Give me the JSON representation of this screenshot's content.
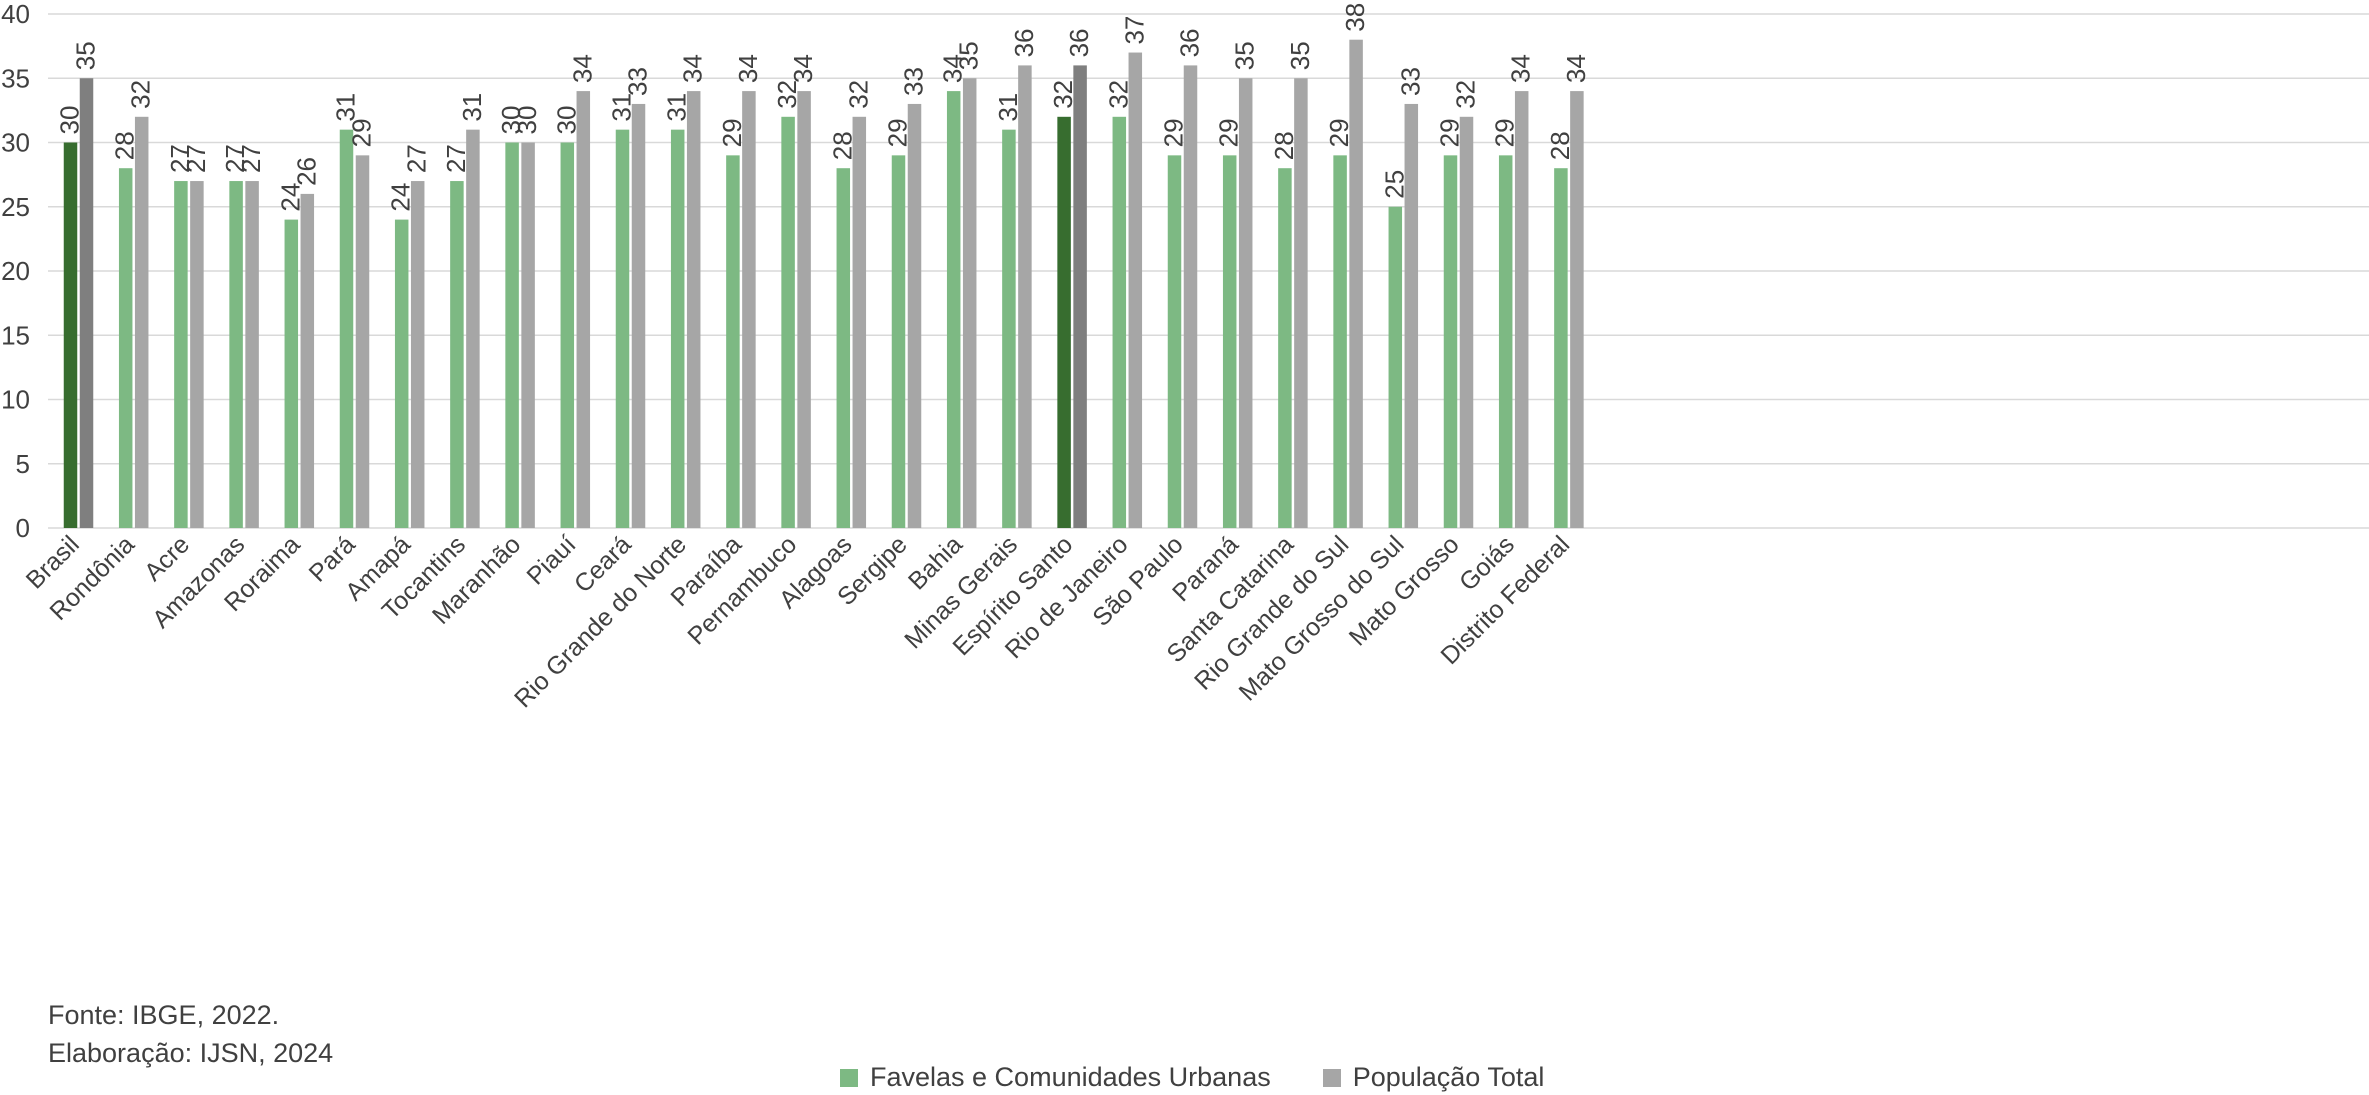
{
  "chart_data": {
    "type": "bar",
    "categories": [
      "Brasil",
      "Rondônia",
      "Acre",
      "Amazonas",
      "Roraima",
      "Pará",
      "Amapá",
      "Tocantins",
      "Maranhão",
      "Piauí",
      "Ceará",
      "Rio Grande do Norte",
      "Paraíba",
      "Pernambuco",
      "Alagoas",
      "Sergipe",
      "Bahia",
      "Minas Gerais",
      "Espírito Santo",
      "Rio de Janeiro",
      "São Paulo",
      "Paraná",
      "Santa Catarina",
      "Rio Grande do Sul",
      "Mato Grosso do Sul",
      "Mato Grosso",
      "Goiás",
      "Distrito Federal"
    ],
    "series": [
      {
        "name": "Favelas e Comunidades Urbanas",
        "values": [
          30,
          28,
          27,
          27,
          24,
          31,
          24,
          27,
          30,
          30,
          31,
          31,
          29,
          32,
          28,
          29,
          34,
          31,
          32,
          32,
          29,
          29,
          28,
          29,
          25,
          29,
          29,
          28
        ]
      },
      {
        "name": "População Total",
        "values": [
          35,
          32,
          27,
          27,
          26,
          29,
          27,
          31,
          30,
          34,
          33,
          34,
          34,
          34,
          32,
          33,
          35,
          36,
          36,
          37,
          36,
          35,
          35,
          38,
          33,
          32,
          34,
          34
        ]
      }
    ],
    "highlighted_categories": [
      "Brasil",
      "Espírito Santo"
    ],
    "colors": {
      "favelas": "#7DB983",
      "favelas_highlight": "#376D2F",
      "populacao": "#A6A6A6",
      "populacao_highlight": "#7F7F7F",
      "grid": "#D9D9D9",
      "text": "#404040"
    },
    "ylim": [
      0,
      40
    ],
    "yticks": [
      0,
      5,
      10,
      15,
      20,
      25,
      30,
      35,
      40
    ],
    "grid": true,
    "data_labels": true,
    "legend_position": "bottom",
    "title": "",
    "xlabel": "",
    "ylabel": ""
  },
  "source_lines": {
    "fonte": "Fonte: IBGE, 2022.",
    "elaboracao": "Elaboração: IJSN, 2024"
  }
}
